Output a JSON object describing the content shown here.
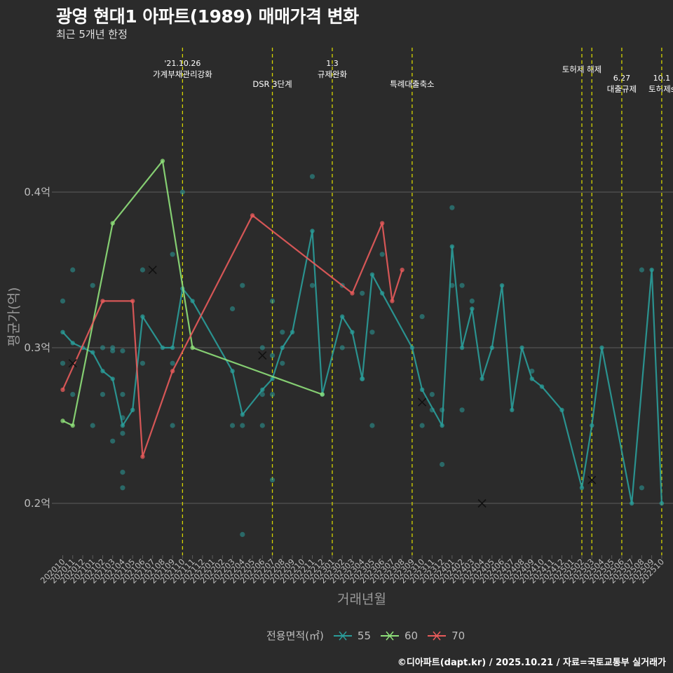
{
  "title": "광영 현대1 아파트(1989) 매매가격 변화",
  "subtitle": "최근 5개년 한정",
  "credit": "©디아파트(dapt.kr) / 2025.10.21 / 자료=국토교통부 실거래가",
  "legend": {
    "title": "전용면적(㎡)",
    "items": [
      {
        "label": "55",
        "color": "#2a9d9a"
      },
      {
        "label": "60",
        "color": "#8fe07a"
      },
      {
        "label": "70",
        "color": "#e85b5b"
      }
    ]
  },
  "colors": {
    "background": "#2b2b2b",
    "grid": "#5c5c5c",
    "event_line": "#d4d400",
    "axis_text": "#bdbdbd",
    "event_text": "#ffffff"
  },
  "chart_data": {
    "type": "line",
    "xlabel": "거래년월",
    "ylabel": "평균가(억)",
    "ylim": [
      0.165,
      0.44
    ],
    "yticks": [
      {
        "value": 0.2,
        "label": "0.2억"
      },
      {
        "value": 0.3,
        "label": "0.3억"
      },
      {
        "value": 0.4,
        "label": "0.4억"
      }
    ],
    "categories": [
      "202010",
      "202011",
      "202012",
      "202101",
      "202102",
      "202103",
      "202104",
      "202105",
      "202106",
      "202107",
      "202108",
      "202109",
      "202110",
      "202111",
      "202112",
      "202201",
      "202202",
      "202203",
      "202204",
      "202205",
      "202206",
      "202207",
      "202208",
      "202209",
      "202210",
      "202211",
      "202212",
      "202301",
      "202302",
      "202303",
      "202304",
      "202305",
      "202306",
      "202307",
      "202308",
      "202309",
      "202310",
      "202311",
      "202312",
      "202401",
      "202402",
      "202403",
      "202404",
      "202405",
      "202406",
      "202407",
      "202408",
      "202409",
      "202410",
      "202411",
      "202412",
      "202501",
      "202502",
      "202503",
      "202504",
      "202505",
      "202506",
      "202507",
      "202508",
      "202509",
      "202510"
    ],
    "series": [
      {
        "name": "55",
        "color": "#2a9d9a",
        "x": [
          "202010",
          "202011",
          "202012",
          "202101",
          "202102",
          "202103",
          "202104",
          "202105",
          "202106",
          "202108",
          "202109",
          "202110",
          "202111",
          "202203",
          "202204",
          "202206",
          "202207",
          "202208",
          "202209",
          "202211",
          "202212",
          "202302",
          "202303",
          "202304",
          "202305",
          "202306",
          "202309",
          "202310",
          "202312",
          "202401",
          "202402",
          "202403",
          "202404",
          "202405",
          "202406",
          "202407",
          "202408",
          "202409",
          "202410",
          "202412",
          "202502",
          "202503",
          "202504",
          "202507",
          "202509",
          "202510"
        ],
        "y": [
          0.31,
          0.303,
          0.3,
          0.297,
          0.285,
          0.28,
          0.25,
          0.26,
          0.32,
          0.3,
          0.3,
          0.338,
          0.33,
          0.285,
          0.257,
          0.273,
          0.28,
          0.3,
          0.31,
          0.375,
          0.27,
          0.32,
          0.31,
          0.28,
          0.347,
          0.335,
          0.3,
          0.273,
          0.25,
          0.365,
          0.3,
          0.325,
          0.28,
          0.3,
          0.34,
          0.26,
          0.3,
          0.28,
          0.275,
          0.26,
          0.21,
          0.25,
          0.3,
          0.2,
          0.35,
          0.2
        ]
      },
      {
        "name": "60",
        "color": "#8fe07a",
        "x": [
          "202010",
          "202011",
          "202103",
          "202108",
          "202111",
          "202212"
        ],
        "y": [
          0.253,
          0.25,
          0.38,
          0.42,
          0.3,
          0.27
        ]
      },
      {
        "name": "70",
        "color": "#e85b5b",
        "x": [
          "202010",
          "202102",
          "202105",
          "202106",
          "202109",
          "202205",
          "202303",
          "202306",
          "202307",
          "202308"
        ],
        "y": [
          0.273,
          0.33,
          0.33,
          0.23,
          0.285,
          0.385,
          0.335,
          0.38,
          0.33,
          0.35
        ]
      }
    ],
    "scatter_points": [
      {
        "x": "202010",
        "y": 0.33
      },
      {
        "x": "202010",
        "y": 0.29
      },
      {
        "x": "202011",
        "y": 0.35
      },
      {
        "x": "202011",
        "y": 0.27
      },
      {
        "x": "202101",
        "y": 0.34
      },
      {
        "x": "202101",
        "y": 0.25
      },
      {
        "x": "202102",
        "y": 0.3
      },
      {
        "x": "202102",
        "y": 0.27
      },
      {
        "x": "202103",
        "y": 0.3
      },
      {
        "x": "202103",
        "y": 0.298
      },
      {
        "x": "202103",
        "y": 0.24
      },
      {
        "x": "202104",
        "y": 0.298
      },
      {
        "x": "202104",
        "y": 0.27
      },
      {
        "x": "202104",
        "y": 0.255
      },
      {
        "x": "202104",
        "y": 0.245
      },
      {
        "x": "202104",
        "y": 0.22
      },
      {
        "x": "202104",
        "y": 0.21
      },
      {
        "x": "202106",
        "y": 0.35
      },
      {
        "x": "202106",
        "y": 0.29
      },
      {
        "x": "202109",
        "y": 0.36
      },
      {
        "x": "202109",
        "y": 0.29
      },
      {
        "x": "202109",
        "y": 0.25
      },
      {
        "x": "202110",
        "y": 0.4
      },
      {
        "x": "202203",
        "y": 0.325
      },
      {
        "x": "202203",
        "y": 0.25
      },
      {
        "x": "202204",
        "y": 0.34
      },
      {
        "x": "202204",
        "y": 0.25
      },
      {
        "x": "202204",
        "y": 0.18
      },
      {
        "x": "202206",
        "y": 0.3
      },
      {
        "x": "202206",
        "y": 0.27
      },
      {
        "x": "202206",
        "y": 0.25
      },
      {
        "x": "202207",
        "y": 0.33
      },
      {
        "x": "202207",
        "y": 0.295
      },
      {
        "x": "202207",
        "y": 0.27
      },
      {
        "x": "202207",
        "y": 0.215
      },
      {
        "x": "202208",
        "y": 0.31
      },
      {
        "x": "202208",
        "y": 0.29
      },
      {
        "x": "202211",
        "y": 0.41
      },
      {
        "x": "202211",
        "y": 0.34
      },
      {
        "x": "202302",
        "y": 0.34
      },
      {
        "x": "202302",
        "y": 0.3
      },
      {
        "x": "202304",
        "y": 0.335
      },
      {
        "x": "202304",
        "y": 0.28
      },
      {
        "x": "202305",
        "y": 0.31
      },
      {
        "x": "202305",
        "y": 0.25
      },
      {
        "x": "202306",
        "y": 0.36
      },
      {
        "x": "202310",
        "y": 0.32
      },
      {
        "x": "202310",
        "y": 0.25
      },
      {
        "x": "202311",
        "y": 0.27
      },
      {
        "x": "202311",
        "y": 0.26
      },
      {
        "x": "202312",
        "y": 0.26
      },
      {
        "x": "202312",
        "y": 0.225
      },
      {
        "x": "202401",
        "y": 0.39
      },
      {
        "x": "202401",
        "y": 0.34
      },
      {
        "x": "202402",
        "y": 0.34
      },
      {
        "x": "202402",
        "y": 0.26
      },
      {
        "x": "202403",
        "y": 0.33
      },
      {
        "x": "202409",
        "y": 0.285
      },
      {
        "x": "202508",
        "y": 0.35
      },
      {
        "x": "202508",
        "y": 0.21
      }
    ],
    "cross_markers": [
      {
        "x": "202011",
        "y": 0.29
      },
      {
        "x": "202107",
        "y": 0.35
      },
      {
        "x": "202206",
        "y": 0.295
      },
      {
        "x": "202310",
        "y": 0.265
      },
      {
        "x": "202404",
        "y": 0.2
      },
      {
        "x": "202503",
        "y": 0.215
      }
    ],
    "events": [
      {
        "x": "202110",
        "date": "'21.10.26",
        "label": "가계부채관리강화",
        "row": 1
      },
      {
        "x": "202207",
        "date": "",
        "label": "DSR 3단계",
        "row": 2
      },
      {
        "x": "202301",
        "date": "1.3",
        "label": "규제완화",
        "row": 1
      },
      {
        "x": "202309",
        "date": "",
        "label": "특례대출축소",
        "row": 2
      },
      {
        "x": "202502",
        "date": "",
        "label": "토허제 해제",
        "row": 1
      },
      {
        "x": "202503",
        "date": "",
        "label": "",
        "row": 1
      },
      {
        "x": "202506",
        "date": "6.27",
        "label": "대출규제",
        "row": 2
      },
      {
        "x": "202510",
        "date": "10.1",
        "label": "토허제s",
        "row": 2
      }
    ]
  }
}
